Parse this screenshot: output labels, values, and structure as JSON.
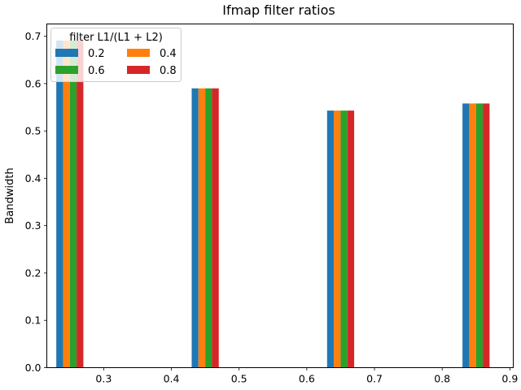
{
  "chart_data": {
    "type": "bar",
    "title": "Ifmap filter ratios",
    "xlabel": "",
    "ylabel": "Bandwidth",
    "xlim": [
      0.216,
      0.905
    ],
    "ylim": [
      0.0,
      0.726
    ],
    "x": [
      0.25,
      0.45,
      0.65,
      0.85
    ],
    "xticks": [
      "0.3",
      "0.4",
      "0.5",
      "0.6",
      "0.7",
      "0.8",
      "0.9"
    ],
    "xtick_values": [
      0.3,
      0.4,
      0.5,
      0.6,
      0.7,
      0.8,
      0.9
    ],
    "yticks": [
      "0.0",
      "0.1",
      "0.2",
      "0.3",
      "0.4",
      "0.5",
      "0.6",
      "0.7"
    ],
    "ytick_values": [
      0.0,
      0.1,
      0.2,
      0.3,
      0.4,
      0.5,
      0.6,
      0.7
    ],
    "grid": false,
    "legend": {
      "title": "filter L1/(L1 + L2)",
      "placement": "top-left",
      "columns": 2
    },
    "series": [
      {
        "name": "0.2",
        "color": "#1f77b4",
        "values": [
          0.691,
          0.59,
          0.543,
          0.558
        ]
      },
      {
        "name": "0.4",
        "color": "#ff7f0e",
        "values": [
          0.691,
          0.59,
          0.543,
          0.558
        ]
      },
      {
        "name": "0.6",
        "color": "#2ca02c",
        "values": [
          0.691,
          0.59,
          0.543,
          0.558
        ]
      },
      {
        "name": "0.8",
        "color": "#d62728",
        "values": [
          0.691,
          0.59,
          0.543,
          0.558
        ]
      }
    ]
  }
}
